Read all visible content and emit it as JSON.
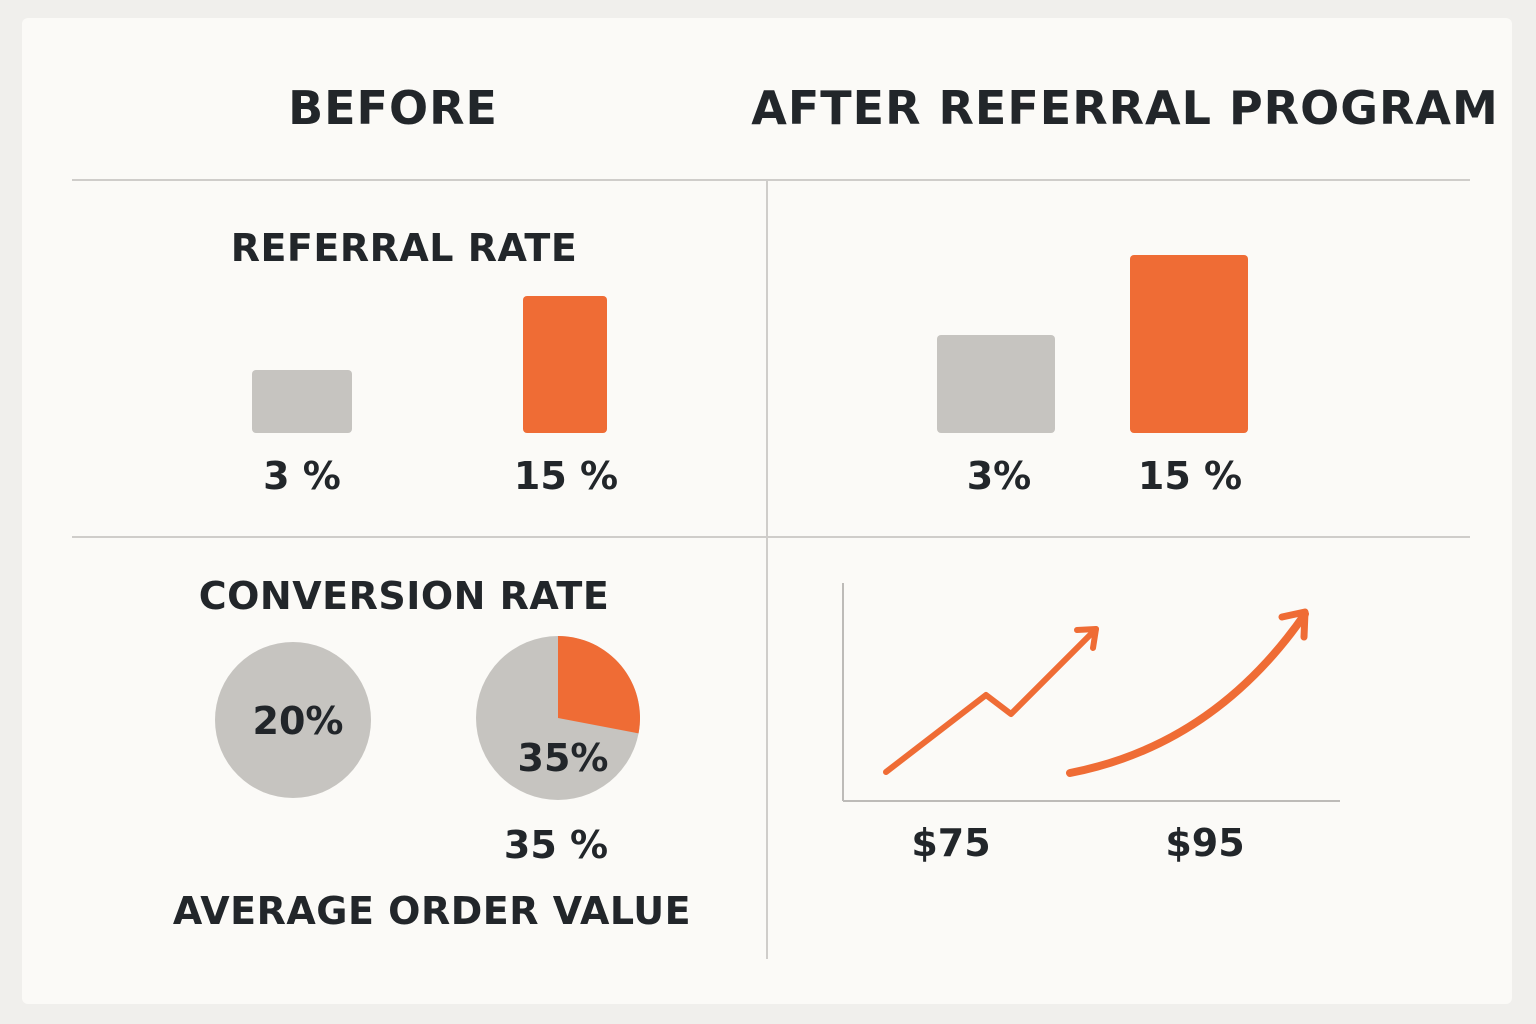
{
  "headers": {
    "before": "BEFORE",
    "after": "AFTER REFERRAL PROGRAM"
  },
  "colors": {
    "before": "#c6c4c0",
    "after": "#ef6c35",
    "text": "#22262a",
    "rule": "#cfcdca"
  },
  "chart_data": [
    {
      "type": "bar",
      "title": "REFERRAL RATE",
      "panel": "before",
      "categories": [
        "3 %",
        "15 %"
      ],
      "values": [
        3,
        15
      ],
      "value_labels": [
        "3 %",
        "15 %"
      ],
      "series_colors": [
        "#c6c4c0",
        "#ef6c35"
      ],
      "ylim": [
        0,
        15
      ]
    },
    {
      "type": "bar",
      "panel": "after",
      "categories": [
        "3%",
        "15 %"
      ],
      "values": [
        3,
        15
      ],
      "value_labels": [
        "3%",
        "15 %"
      ],
      "series_colors": [
        "#c6c4c0",
        "#ef6c35"
      ],
      "ylim": [
        0,
        15
      ]
    },
    {
      "type": "pie",
      "title": "CONVERSION RATE",
      "panel": "before",
      "pies": [
        {
          "inner_label": "20%",
          "highlight_fraction": 0
        },
        {
          "inner_label": "35%",
          "highlight_fraction": 0.28,
          "caption": "35 %"
        }
      ]
    },
    {
      "type": "line",
      "title": "AVERAGE ORDER VALUE",
      "panel": "after",
      "categories": [
        "$75",
        "$95"
      ],
      "values": [
        75,
        95
      ],
      "trend": "increasing"
    }
  ]
}
